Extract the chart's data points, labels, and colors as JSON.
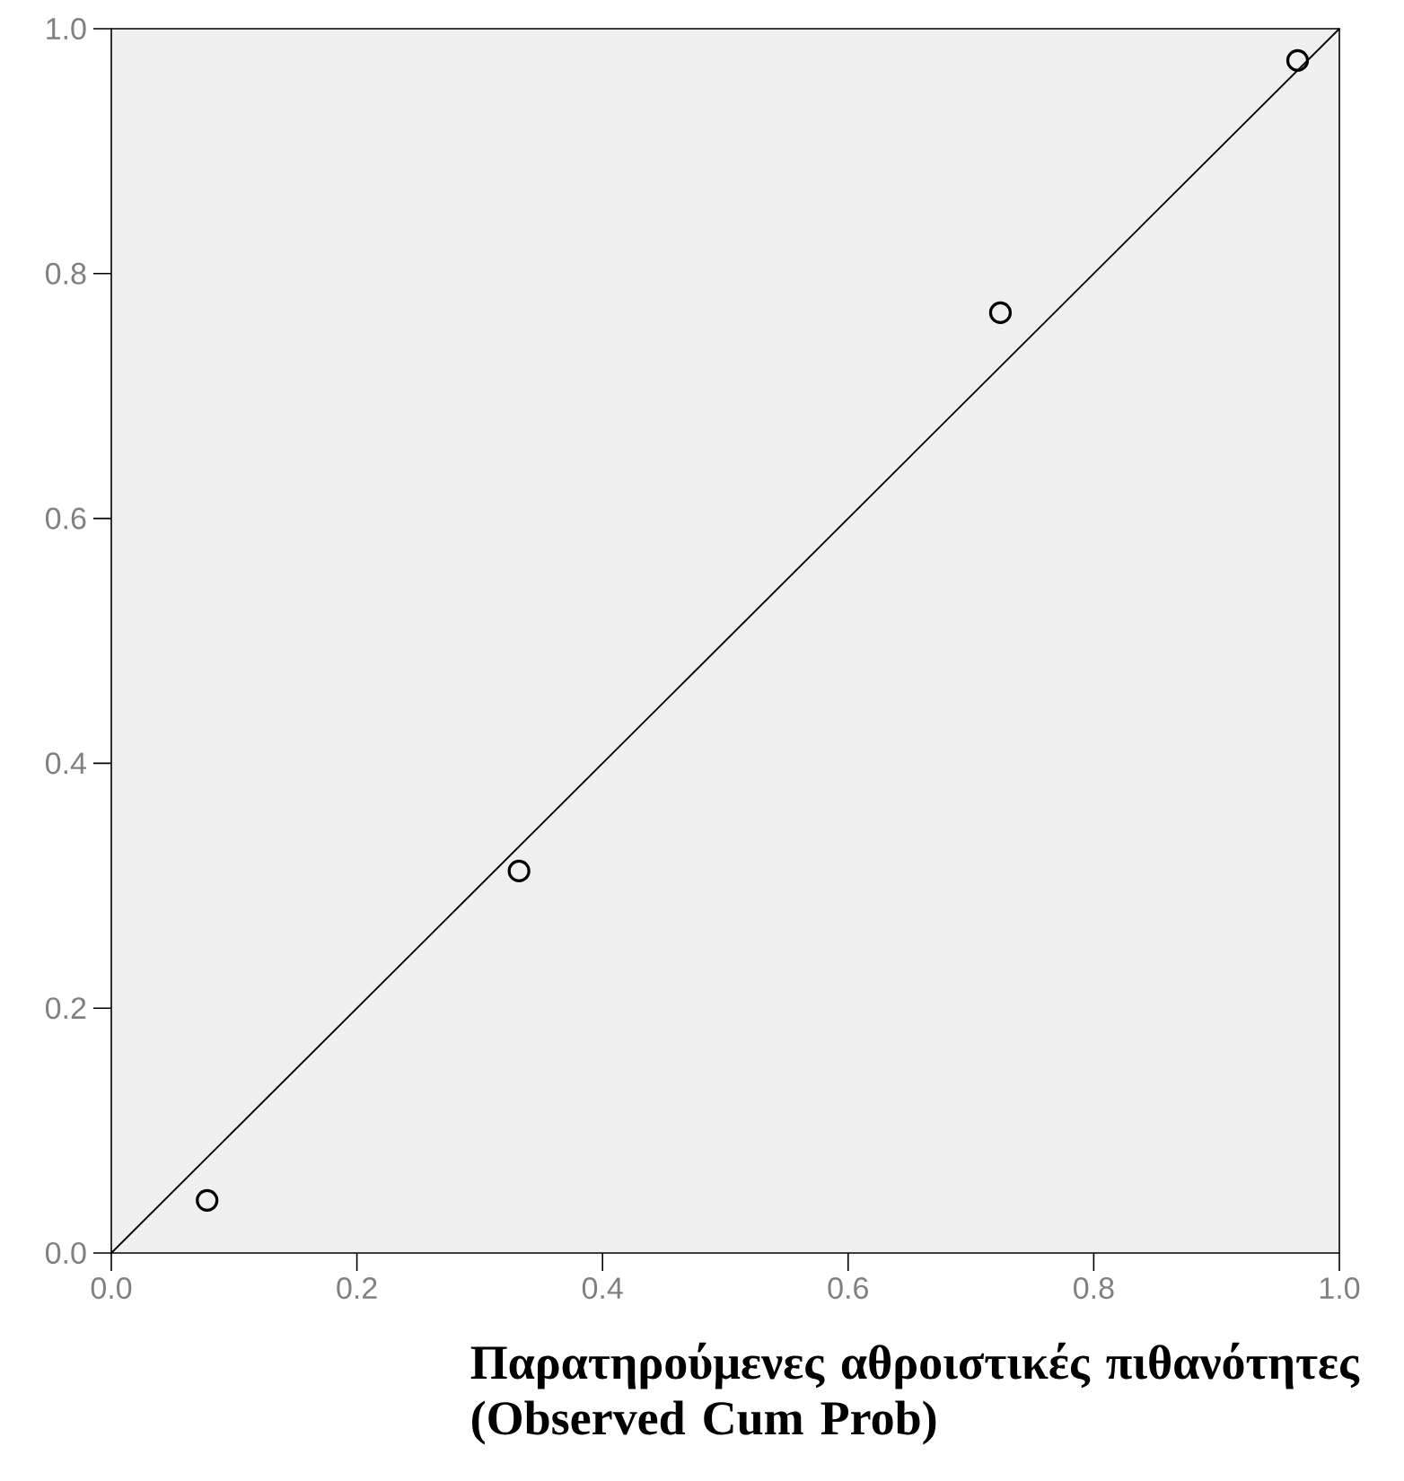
{
  "chart_data": {
    "type": "scatter",
    "xlabel": "Παρατηρούμενες αθροιστικές πιθανότητες (Observed Cum Prob)",
    "xlim": [
      0,
      1
    ],
    "ylim": [
      0,
      1
    ],
    "xticks": [
      {
        "value": 0,
        "label": "0.0"
      },
      {
        "value": 0.2,
        "label": "0.2"
      },
      {
        "value": 0.4,
        "label": "0.4"
      },
      {
        "value": 0.6,
        "label": "0.6"
      },
      {
        "value": 0.8,
        "label": "0.8"
      },
      {
        "value": 1,
        "label": "1.0"
      }
    ],
    "yticks": [
      {
        "value": 0,
        "label": "0.0"
      },
      {
        "value": 0.2,
        "label": "0.2"
      },
      {
        "value": 0.4,
        "label": "0.4"
      },
      {
        "value": 0.6,
        "label": "0.6"
      },
      {
        "value": 0.8,
        "label": "0.8"
      },
      {
        "value": 1,
        "label": "1.0"
      }
    ],
    "grid": false,
    "series": [
      {
        "marker": "circle",
        "color": "#000000",
        "x": [
          0.078,
          0.332,
          0.724,
          0.966
        ],
        "values": [
          0.043,
          0.312,
          0.768,
          0.974
        ]
      },
      {
        "type": "line",
        "marker": "none",
        "line_style": "solid",
        "color": "#000000",
        "x": [
          0,
          1
        ],
        "values": [
          0,
          1
        ]
      }
    ]
  }
}
